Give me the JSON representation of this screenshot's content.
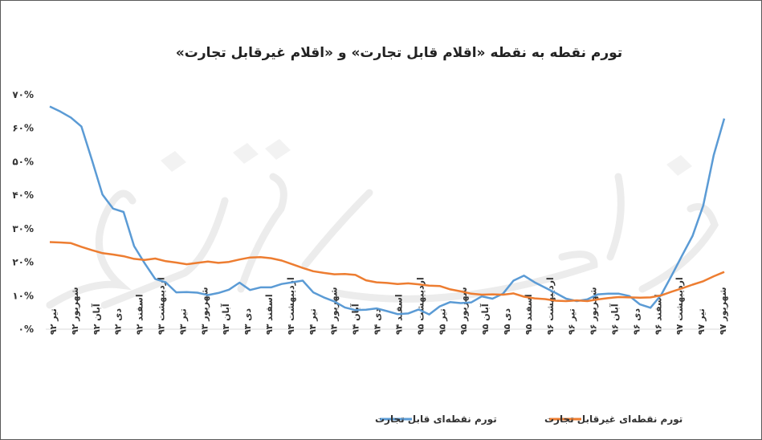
{
  "chart_data": {
    "type": "line",
    "title": "تورم نقطه به نقطه «اقلام قابل تجارت» و «اقلام غیرقابل تجارت»",
    "ylim": [
      0,
      70
    ],
    "yticks": [
      "۰%",
      "۱۰%",
      "۲۰%",
      "۳۰%",
      "۴۰%",
      "۵۰%",
      "۶۰%",
      "۷۰%"
    ],
    "x_labels": [
      "تیر ۹۲",
      "شهریور ۹۲",
      "آبان ۹۲",
      "دی ۹۲",
      "اسفند ۹۲",
      "اردیبهشت ۹۳",
      "تیر ۹۳",
      "شهریور ۹۳",
      "آبان ۹۳",
      "دی ۹۳",
      "اسفند ۹۳",
      "اردیبهشت ۹۴",
      "تیر ۹۴",
      "شهریور ۹۴",
      "آبان ۹۴",
      "دی ۹۴",
      "اسفند ۹۴",
      "اردیبهشت ۹۵",
      "تیر ۹۵",
      "شهریور ۹۵",
      "آبان ۹۵",
      "دی ۹۵",
      "اسفند ۹۵",
      "اردیبهشت ۹۶",
      "تیر ۹۶",
      "شهریور ۹۶",
      "آبان ۹۶",
      "دی ۹۶",
      "اسفند ۹۶",
      "اردیبهشت ۹۷",
      "تیر ۹۷",
      "شهریور ۹۷"
    ],
    "grid": false,
    "legend_position": "bottom",
    "series": [
      {
        "name": "تورم نقطه‌ای قابل تجارت",
        "color": "#5B9BD5",
        "values": [
          66.5,
          65,
          63.2,
          60.5,
          50.5,
          40.2,
          36,
          35,
          24.8,
          19.7,
          15,
          14,
          11,
          11.1,
          10.9,
          10.2,
          10.8,
          11.8,
          13.9,
          11.7,
          12.5,
          12.5,
          13.5,
          14,
          14.5,
          11,
          9.5,
          8.3,
          6.5,
          5.7,
          5.8,
          6.2,
          5.4,
          4.5,
          4.7,
          5.9,
          4.4,
          6.8,
          8.1,
          7.8,
          8,
          9.8,
          9.1,
          10.6,
          14.5,
          16,
          14,
          12.4,
          10.8,
          9.1,
          8.4,
          8.9,
          10.4,
          10.6,
          10.6,
          9.9,
          7.4,
          6.4,
          10.2,
          16,
          22,
          27.9,
          36.9,
          52,
          62.9
        ]
      },
      {
        "name": "تورم نقطه‌ای غیرقابل تجارت",
        "color": "#ED7D31",
        "values": [
          26,
          25.9,
          25.7,
          24.6,
          23.6,
          22.7,
          22.3,
          21.8,
          21,
          20.7,
          21.1,
          20.3,
          19.9,
          19.4,
          19.8,
          20.2,
          19.8,
          20.1,
          20.8,
          21.4,
          21.5,
          21.2,
          20.5,
          19.4,
          18.3,
          17.3,
          16.8,
          16.4,
          16.5,
          16.2,
          14.6,
          14,
          13.8,
          13.5,
          13.7,
          13.4,
          13,
          12.9,
          11.9,
          11.3,
          10.6,
          10.3,
          10.4,
          10.3,
          10.7,
          9.7,
          9.2,
          9,
          8.5,
          8.4,
          8.6,
          8.4,
          8.9,
          9.3,
          9.6,
          9.5,
          9.4,
          9.5,
          10.1,
          11.2,
          12.2,
          13.3,
          14.3,
          15.8,
          17.1
        ]
      }
    ]
  }
}
